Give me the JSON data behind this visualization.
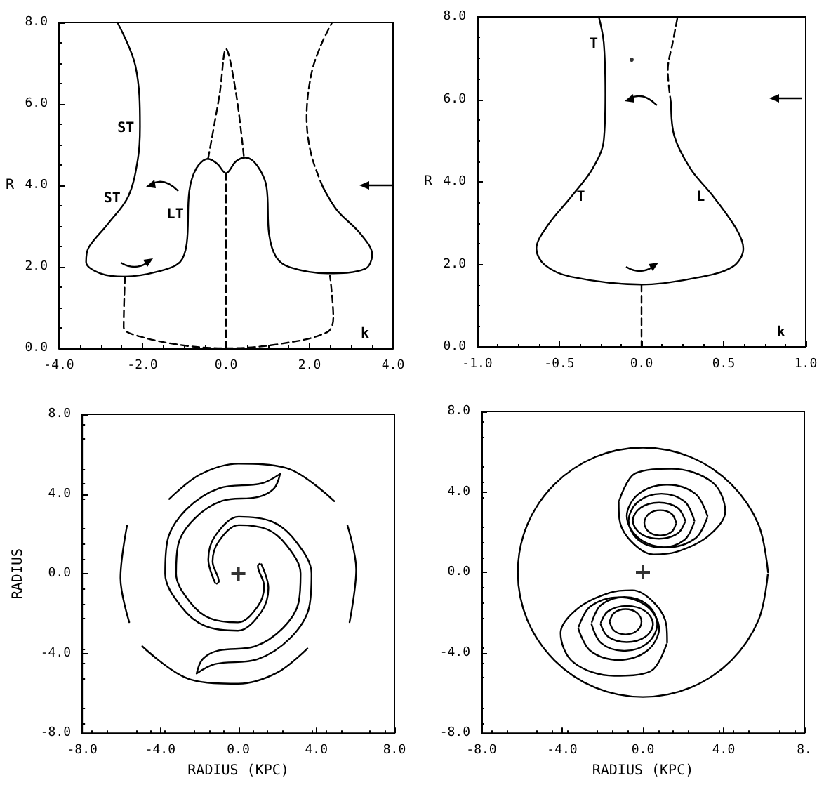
{
  "chart_data": [
    {
      "type": "line",
      "ylabel": "R",
      "xlim": [
        -4,
        4
      ],
      "ylim": [
        0,
        8
      ],
      "xticks": [
        {
          "value": -4,
          "label": "-4.0"
        },
        {
          "value": -2,
          "label": "-2.0"
        },
        {
          "value": 0,
          "label": "0.0"
        },
        {
          "value": 2,
          "label": "2.0"
        },
        {
          "value": 4,
          "label": "4.0"
        }
      ],
      "yticks": [
        {
          "value": 0,
          "label": "0.0"
        },
        {
          "value": 2,
          "label": "2.0"
        },
        {
          "value": 4,
          "label": "4.0"
        },
        {
          "value": 6,
          "label": "6.0"
        },
        {
          "value": 8,
          "label": "8.0"
        }
      ],
      "annotations": [
        "ST",
        "ST",
        "LT",
        "k"
      ],
      "series": [
        {
          "color": "#000000",
          "line_style": "solid",
          "x": [
            -2.6,
            -2.17,
            -2.06,
            -2.11,
            -2.34,
            -2.84,
            -3.29,
            -3.35,
            -3.01,
            -2.42,
            -1.61,
            -1.1,
            -0.94,
            -0.88,
            -0.71,
            -0.43,
            -0.21,
            0.0,
            0.24,
            0.47,
            0.75,
            0.97,
            1.03,
            1.2,
            1.53,
            2.43,
            3.33,
            3.5,
            3.22,
            2.66,
            2.32
          ],
          "values": [
            8,
            6.94,
            5.45,
            4.65,
            3.73,
            3.04,
            2.47,
            2.12,
            1.84,
            1.76,
            1.89,
            2.12,
            2.58,
            3.85,
            4.42,
            4.65,
            4.53,
            4.3,
            4.59,
            4.68,
            4.48,
            3.96,
            2.81,
            2.24,
            1.99,
            1.84,
            1.95,
            2.3,
            2.81,
            3.39,
            3.96
          ]
        },
        {
          "color": "#000000",
          "line_style": "dashed",
          "x": [
            2.32,
            2.04,
            1.93,
            2.04,
            2.26,
            2.54
          ],
          "values": [
            3.96,
            4.76,
            5.68,
            6.72,
            7.41,
            8
          ]
        },
        {
          "color": "#000000",
          "line_style": "dashed",
          "x": [
            -0.43,
            -0.15,
            0.0,
            0.24,
            0.43
          ],
          "values": [
            4.65,
            6.26,
            7.35,
            6.26,
            4.68
          ]
        },
        {
          "color": "#000000",
          "line_style": "dashed",
          "x": [
            0,
            0
          ],
          "values": [
            4.3,
            0
          ]
        },
        {
          "color": "#000000",
          "line_style": "dashed",
          "x": [
            -2.42,
            -2.45,
            -2.06,
            -0.94,
            0.0,
            1.31,
            2.43,
            2.57,
            2.49
          ],
          "values": [
            1.76,
            0.52,
            0.29,
            0.06,
            0,
            0.11,
            0.4,
            0.75,
            1.78
          ]
        }
      ]
    },
    {
      "type": "line",
      "ylabel": "R",
      "xlim": [
        -1,
        1
      ],
      "ylim": [
        0,
        8
      ],
      "xticks": [
        {
          "value": -1,
          "label": "-1.0"
        },
        {
          "value": -0.5,
          "label": "-0.5"
        },
        {
          "value": 0,
          "label": "0.0"
        },
        {
          "value": 0.5,
          "label": "0.5"
        },
        {
          "value": 1,
          "label": "1.0"
        }
      ],
      "yticks": [
        {
          "value": 0,
          "label": "0.0"
        },
        {
          "value": 2,
          "label": "2.0"
        },
        {
          "value": 4,
          "label": "4.0"
        },
        {
          "value": 6,
          "label": "6.0"
        },
        {
          "value": 8,
          "label": "8.0"
        }
      ],
      "annotations": [
        "T",
        "T",
        "L",
        "k"
      ],
      "series": [
        {
          "color": "#000000",
          "line_style": "solid",
          "x": [
            -0.26,
            -0.23,
            -0.22,
            -0.23,
            -0.3,
            -0.43,
            -0.57,
            -0.64,
            -0.59,
            -0.43,
            0.0,
            0.3,
            0.55,
            0.62,
            0.58,
            0.44,
            0.3,
            0.2,
            0.18
          ],
          "values": [
            8,
            7.38,
            6.13,
            5.0,
            4.31,
            3.63,
            2.95,
            2.38,
            1.99,
            1.7,
            1.51,
            1.65,
            1.93,
            2.38,
            2.84,
            3.63,
            4.31,
            5.11,
            5.9
          ]
        },
        {
          "color": "#000000",
          "line_style": "dashed",
          "x": [
            0.18,
            0.16,
            0.19,
            0.22
          ],
          "values": [
            5.9,
            6.7,
            7.38,
            8
          ]
        },
        {
          "color": "#000000",
          "line_style": "dashed",
          "x": [
            0,
            0
          ],
          "values": [
            1.51,
            0
          ]
        },
        {
          "type": "scatter",
          "marker": "circle",
          "color": "#000000",
          "x": [
            -0.06
          ],
          "values": [
            6.96
          ]
        }
      ]
    },
    {
      "type": "line",
      "xlabel": "RADIUS (KPC)",
      "ylabel": "RADIUS",
      "xlim": [
        -8,
        8
      ],
      "ylim": [
        -8,
        8
      ],
      "xticks": [
        {
          "value": -8,
          "label": "-8.0"
        },
        {
          "value": -4,
          "label": "-4.0"
        },
        {
          "value": 0,
          "label": "0.0"
        },
        {
          "value": 4,
          "label": "4.0"
        },
        {
          "value": 8,
          "label": "8.0"
        }
      ],
      "yticks": [
        {
          "value": -8,
          "label": "-8.0"
        },
        {
          "value": -4,
          "label": "-4.0"
        },
        {
          "value": 0,
          "label": "0.0"
        },
        {
          "value": 4,
          "label": "4.0"
        },
        {
          "value": 8,
          "label": "8.0"
        }
      ],
      "series": [
        {
          "color": "#000000",
          "line_style": "solid",
          "x": [
            -1.18,
            -1.54,
            -1.18,
            0.02,
            1.71,
            2.91,
            3.75,
            3.63,
            2.67,
            0.98,
            -1.18,
            -2.14,
            -1.82,
            -1.0,
            0.84,
            2.27,
            3.09,
            3.19,
            2.47,
            1.45,
            0.02,
            -1.0,
            -1.32,
            -1.0,
            -1.1
          ],
          "values": [
            -0.48,
            0.71,
            1.91,
            2.86,
            2.62,
            1.67,
            0,
            -1.67,
            -3.22,
            -4.29,
            -4.53,
            -5.01,
            -4.27,
            -3.85,
            -3.65,
            -2.74,
            -1.43,
            0,
            1.43,
            2.24,
            2.44,
            1.63,
            0.61,
            -0.4,
            -0.5
          ]
        },
        {
          "color": "#000000",
          "line_style": "solid",
          "x": [
            1.18,
            1.54,
            1.18,
            -0.02,
            -1.71,
            -2.91,
            -3.75,
            -3.63,
            -2.67,
            -0.98,
            1.18,
            2.14,
            1.82,
            1.0,
            -0.84,
            -2.27,
            -3.09,
            -3.19,
            -2.47,
            -1.45,
            -0.02,
            1.0,
            1.32,
            1.0,
            1.1
          ],
          "values": [
            0.48,
            -0.71,
            -1.91,
            -2.86,
            -2.62,
            -1.67,
            0,
            1.67,
            3.22,
            4.29,
            4.53,
            5.01,
            4.27,
            3.85,
            3.65,
            2.74,
            1.43,
            0,
            -1.43,
            -2.24,
            -2.44,
            -1.63,
            -0.61,
            0.4,
            0.5
          ]
        },
        {
          "color": "#000000",
          "line_style": "solid",
          "x": [
            -3.54,
            -1.98,
            0,
            2.47,
            4.92
          ],
          "values": [
            3.75,
            4.97,
            5.52,
            5.3,
            3.64
          ]
        },
        {
          "color": "#000000",
          "line_style": "solid",
          "x": [
            5.59,
            6.04,
            5.7
          ],
          "values": [
            2.43,
            0.22,
            -2.43
          ]
        },
        {
          "color": "#000000",
          "line_style": "solid",
          "x": [
            3.54,
            1.98,
            0,
            -2.47,
            -4.92
          ],
          "values": [
            -3.75,
            -4.97,
            -5.52,
            -5.3,
            -3.64
          ]
        },
        {
          "color": "#000000",
          "line_style": "solid",
          "x": [
            -5.59,
            -6.04,
            -5.7
          ],
          "values": [
            -2.43,
            -0.22,
            2.43
          ]
        },
        {
          "type": "scatter",
          "marker": "cross",
          "color": "#000000",
          "x": [
            0
          ],
          "values": [
            0
          ]
        }
      ]
    },
    {
      "type": "line",
      "xlabel": "RADIUS (KPC)",
      "xlim": [
        -8,
        8
      ],
      "ylim": [
        -8,
        8
      ],
      "xticks": [
        {
          "value": -8,
          "label": "-8.0"
        },
        {
          "value": -4,
          "label": "-4.0"
        },
        {
          "value": 0,
          "label": "0.0"
        },
        {
          "value": 4,
          "label": "4.0"
        },
        {
          "value": 8,
          "label": "8."
        }
      ],
      "yticks": [
        {
          "value": -8,
          "label": "-8.0"
        },
        {
          "value": -4,
          "label": "-4.0"
        },
        {
          "value": 0,
          "label": "0.0"
        },
        {
          "value": 4,
          "label": "4.0"
        },
        {
          "value": 8,
          "label": "8.0"
        }
      ],
      "series": [
        {
          "color": "#000000",
          "line_style": "solid",
          "x": [
            6.2,
            5.73,
            4.38,
            2.37,
            0,
            -2.37,
            -4.38,
            -5.73,
            -6.2,
            -5.73,
            -4.38,
            -2.37,
            0,
            2.37,
            4.38,
            5.73,
            6.19
          ],
          "values": [
            0,
            2.37,
            4.38,
            5.73,
            6.2,
            5.73,
            4.38,
            2.37,
            0,
            -2.37,
            -4.38,
            -5.73,
            -6.2,
            -5.73,
            -4.38,
            -2.37,
            -0.1
          ]
        },
        {
          "color": "#000000",
          "line_style": "solid",
          "x": [
            -1.17,
            -0.38,
            1.42,
            3.45,
            4.08,
            3.22,
            1.64,
            0.52,
            -0.61,
            -1.17,
            -1.2
          ],
          "values": [
            3.58,
            4.92,
            5.15,
            4.47,
            3.02,
            1.79,
            1.01,
            0.89,
            1.57,
            2.68,
            3.5
          ]
        },
        {
          "color": "#000000",
          "line_style": "solid",
          "x": [
            3.2,
            2.61,
            1.2,
            -0.21,
            -0.8,
            -0.21,
            1.2,
            2.61,
            3.18
          ],
          "values": [
            2.8,
            3.9,
            4.36,
            3.9,
            2.8,
            1.7,
            1.24,
            1.7,
            2.7
          ]
        },
        {
          "color": "#000000",
          "line_style": "solid",
          "x": [
            2.55,
            2.07,
            0.92,
            -0.23,
            -0.71,
            -0.23,
            0.92,
            2.07,
            2.53
          ],
          "values": [
            2.57,
            3.52,
            3.91,
            3.52,
            2.57,
            1.62,
            1.23,
            1.62,
            2.47
          ]
        },
        {
          "color": "#000000",
          "line_style": "solid",
          "x": [
            2.1,
            1.72,
            0.8,
            -0.12,
            -0.5,
            -0.12,
            0.8,
            1.72,
            2.08
          ],
          "values": [
            2.57,
            3.21,
            3.47,
            3.21,
            2.57,
            1.93,
            1.67,
            1.93,
            2.49
          ]
        },
        {
          "color": "#000000",
          "line_style": "solid",
          "x": [
            1.65,
            1.42,
            0.86,
            0.3,
            0.07,
            0.3,
            0.86,
            1.42,
            1.63
          ],
          "values": [
            2.46,
            2.91,
            3.09,
            2.91,
            2.46,
            2.01,
            1.83,
            2.01,
            2.39
          ]
        },
        {
          "color": "#000000",
          "line_style": "solid",
          "x": [
            1.17,
            0.38,
            -1.42,
            -3.45,
            -4.08,
            -3.22,
            -1.64,
            -0.52,
            0.61,
            1.17,
            1.2
          ],
          "values": [
            -3.58,
            -4.92,
            -5.15,
            -4.47,
            -3.02,
            -1.79,
            -1.01,
            -0.89,
            -1.57,
            -2.68,
            -3.5
          ]
        },
        {
          "color": "#000000",
          "line_style": "solid",
          "x": [
            -3.2,
            -2.61,
            -1.2,
            0.21,
            0.8,
            0.21,
            -1.2,
            -2.61,
            -3.18
          ],
          "values": [
            -2.8,
            -3.9,
            -4.36,
            -3.9,
            -2.8,
            -1.7,
            -1.24,
            -1.7,
            -2.7
          ]
        },
        {
          "color": "#000000",
          "line_style": "solid",
          "x": [
            -2.55,
            -2.07,
            -0.92,
            0.23,
            0.71,
            0.23,
            -0.92,
            -2.07,
            -2.53
          ],
          "values": [
            -2.57,
            -3.52,
            -3.91,
            -3.52,
            -2.57,
            -1.62,
            -1.23,
            -1.62,
            -2.47
          ]
        },
        {
          "color": "#000000",
          "line_style": "solid",
          "x": [
            -2.1,
            -1.72,
            -0.8,
            0.12,
            0.5,
            0.12,
            -0.8,
            -1.72,
            -2.08
          ],
          "values": [
            -2.57,
            -3.21,
            -3.47,
            -3.21,
            -2.57,
            -1.93,
            -1.67,
            -1.93,
            -2.49
          ]
        },
        {
          "color": "#000000",
          "line_style": "solid",
          "x": [
            -1.65,
            -1.42,
            -0.86,
            -0.3,
            -0.07,
            -0.3,
            -0.86,
            -1.42,
            -1.63
          ],
          "values": [
            -2.46,
            -2.91,
            -3.09,
            -2.91,
            -2.46,
            -2.01,
            -1.83,
            -2.01,
            -2.39
          ]
        },
        {
          "type": "scatter",
          "marker": "cross",
          "color": "#000000",
          "x": [
            0
          ],
          "values": [
            0
          ]
        }
      ]
    }
  ]
}
